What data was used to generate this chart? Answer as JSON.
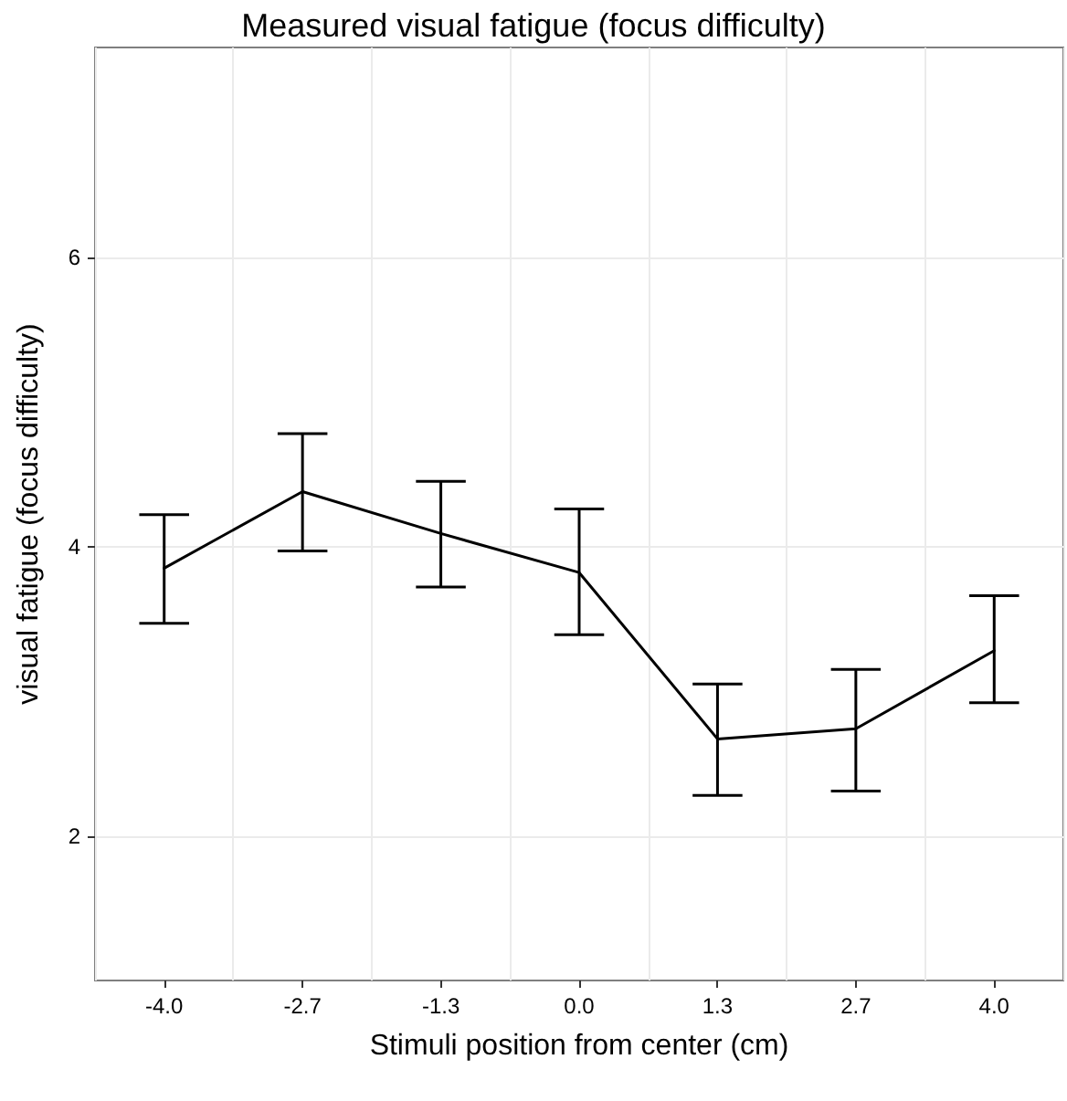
{
  "chart_data": {
    "type": "line",
    "title": "Measured visual fatigue (focus difficulty)",
    "xlabel": "Stimuli position from center (cm)",
    "ylabel": "visual fatigue (focus difficulty)",
    "categories": [
      "-4.0",
      "-2.7",
      "-1.3",
      "0.0",
      "1.3",
      "2.7",
      "4.0"
    ],
    "series": [
      {
        "color": "#000000",
        "values": [
          3.85,
          4.38,
          4.09,
          3.82,
          2.67,
          2.74,
          3.28
        ],
        "errors": [
          [
            3.47,
            4.22
          ],
          [
            3.97,
            4.78
          ],
          [
            3.72,
            4.45
          ],
          [
            3.39,
            4.26
          ],
          [
            2.28,
            3.05
          ],
          [
            2.31,
            3.15
          ],
          [
            2.92,
            3.66
          ]
        ]
      }
    ],
    "ylim": [
      1,
      7.45
    ],
    "yticks": [
      2,
      4,
      6
    ],
    "grid": true,
    "marker": "none",
    "line_style": "solid"
  }
}
